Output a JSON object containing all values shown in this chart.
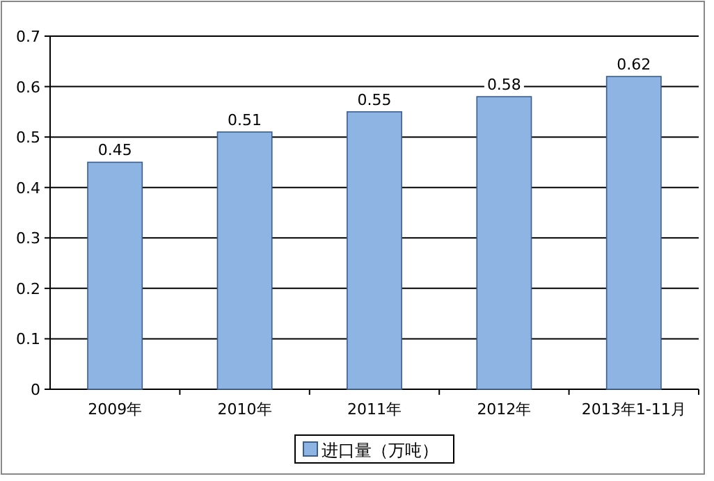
{
  "chart_data": {
    "type": "bar",
    "categories": [
      "2009年",
      "2010年",
      "2011年",
      "2012年",
      "2013年1-11月"
    ],
    "series": [
      {
        "name": "进口量（万吨）",
        "color": "#8db4e2",
        "values": [
          0.45,
          0.51,
          0.55,
          0.58,
          0.62
        ]
      }
    ],
    "ylim": [
      0,
      0.7
    ],
    "yticks": [
      0,
      0.1,
      0.2,
      0.3,
      0.4,
      0.5,
      0.6,
      0.7
    ],
    "grid": "y",
    "legend": "bottom",
    "data_labels": true
  }
}
